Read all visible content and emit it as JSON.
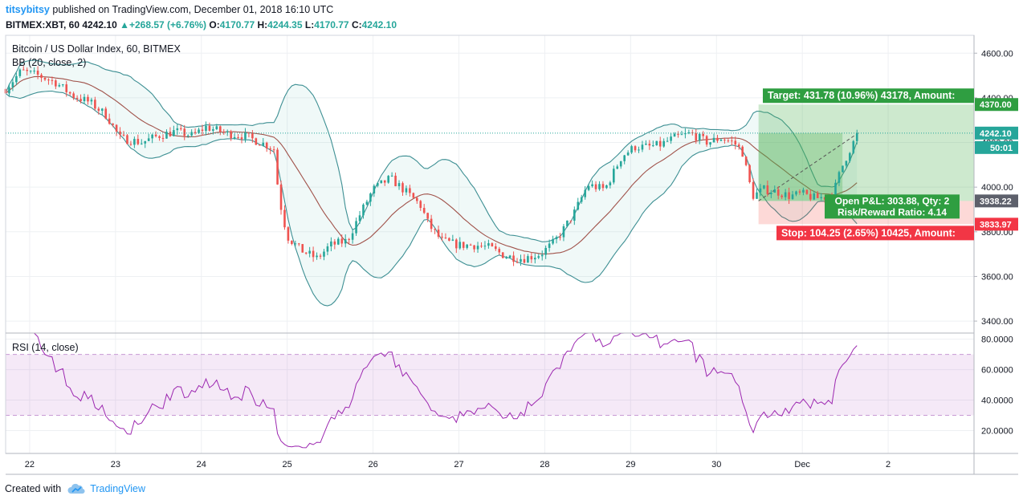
{
  "header": {
    "author": "titsybitsy",
    "published_text": " published on TradingView.com, December 01, 2018 16:10 UTC",
    "symbol": "BITMEX:XBT, 60",
    "last": "4242.10",
    "change": "+268.57 (+6.76%)",
    "o_label": "O:",
    "o_value": "4170.77",
    "h_label": "H:",
    "h_value": "4244.35",
    "l_label": "L:",
    "l_value": "4170.77",
    "c_label": "C:",
    "c_value": "4242.10"
  },
  "footer": {
    "created_with": "Created with",
    "brand": "TradingView"
  },
  "colors": {
    "up": "#26a69a",
    "down": "#ef5350",
    "bb": "#3d8f93",
    "basis": "#a0524a",
    "rsi": "#9c27b0",
    "target": "#2f9e41",
    "stop": "#f23645"
  },
  "chart_data": [
    {
      "type": "candlestick",
      "title": "Bitcoin / US Dollar Index, 60, BITMEX",
      "indicator_label": "BB (20, close, 2)",
      "ylim": [
        3350,
        4680
      ],
      "y_ticks": [
        "4600.00",
        "4400.00",
        "4200.00",
        "4000.00",
        "3800.00",
        "3600.00",
        "3400.00"
      ],
      "x_ticks": [
        "22",
        "23",
        "24",
        "25",
        "26",
        "27",
        "28",
        "29",
        "30",
        "Dec",
        "2"
      ],
      "x_range_days": [
        21.72,
        33.0
      ],
      "price_anchors_day": [
        21.72,
        21.9,
        22.1,
        22.3,
        22.5,
        22.7,
        22.9,
        23.05,
        23.3,
        23.5,
        23.7,
        23.9,
        24.05,
        24.3,
        24.5,
        24.75,
        24.85,
        24.9,
        25.0,
        25.15,
        25.35,
        25.5,
        25.7,
        25.85,
        26.0,
        26.2,
        26.35,
        26.55,
        26.65,
        26.8,
        27.0,
        27.2,
        27.35,
        27.55,
        27.75,
        27.95,
        28.1,
        28.2,
        28.35,
        28.5,
        28.7,
        28.9,
        29.05,
        29.2,
        29.35,
        29.5,
        29.7,
        29.9,
        30.05,
        30.2,
        30.3,
        30.42,
        30.55,
        30.7,
        30.85,
        31.0,
        31.15,
        31.35,
        31.45,
        31.53,
        31.65
      ],
      "price_anchors_close": [
        4440,
        4520,
        4500,
        4470,
        4410,
        4380,
        4320,
        4220,
        4200,
        4230,
        4250,
        4230,
        4270,
        4240,
        4230,
        4190,
        4170,
        3960,
        3780,
        3720,
        3680,
        3740,
        3760,
        3880,
        3990,
        4040,
        3990,
        3920,
        3830,
        3760,
        3740,
        3740,
        3730,
        3690,
        3680,
        3700,
        3750,
        3800,
        3890,
        4010,
        3990,
        4140,
        4180,
        4180,
        4190,
        4220,
        4240,
        4200,
        4220,
        4200,
        4160,
        3960,
        3990,
        3980,
        3960,
        3970,
        3950,
        3960,
        4080,
        4150,
        4242.1
      ],
      "bollinger": {
        "period": 20,
        "stddev": 2
      },
      "last_price_label": "4242.10",
      "countdown_label": "50:01",
      "position_price_label": "3938.22",
      "target_price_label": "4370.00",
      "stop_price_label": "3833.97",
      "position": {
        "entry": 3938.22,
        "target": 4370.0,
        "stop": 3833.97,
        "start_day": 30.49,
        "end_day": 31.0,
        "target_text": "Target: 431.78 (10.96%) 43178, Amount:",
        "stop_text": "Stop: 104.25 (2.65%) 10425, Amount:",
        "pnl_text": "Open P&L: 303.88, Qty: 2",
        "rr_text": "Risk/Reward Ratio: 4.14"
      }
    },
    {
      "type": "line",
      "title": "RSI (14, close)",
      "ylim": [
        5,
        84
      ],
      "y_ticks": [
        "80.0000",
        "60.0000",
        "40.0000",
        "20.0000"
      ],
      "band": [
        30,
        70
      ]
    }
  ]
}
